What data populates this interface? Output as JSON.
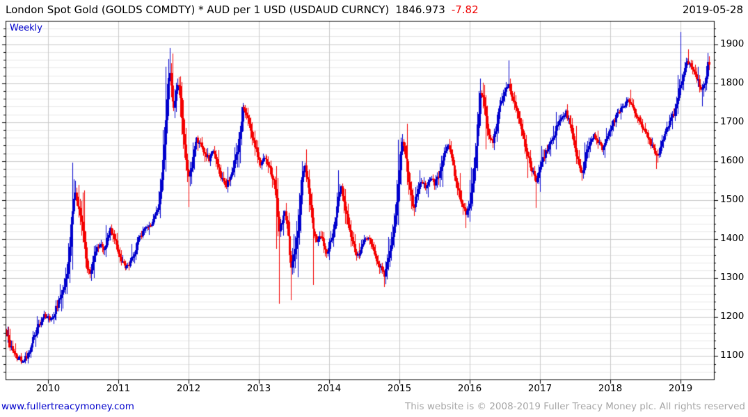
{
  "header": {
    "title": "London Spot Gold (GOLDS COMDTY) * AUD per 1 USD (USDAUD CURNCY)",
    "last_price": "1846.973",
    "change": "-7.82",
    "date": "2019-05-28"
  },
  "footer": {
    "website": "www.fullertreacymoney.com",
    "copyright": "This website is © 2008-2019 Fuller Treacy Money plc. All rights reserved"
  },
  "chart_data": {
    "type": "candlestick",
    "frequency_label": "Weekly",
    "title": "London Spot Gold (GOLDS COMDTY) * AUD per 1 USD (USDAUD CURNCY)",
    "last_close": 1846.973,
    "last_change": -7.82,
    "x_ticks": [
      2010,
      2011,
      2012,
      2013,
      2014,
      2015,
      2016,
      2017,
      2018,
      2019
    ],
    "y_ticks": [
      1100,
      1200,
      1300,
      1400,
      1500,
      1600,
      1700,
      1800,
      1900
    ],
    "y_minor_step": 20,
    "x_range": [
      2009.402,
      2019.475
    ],
    "y_range": [
      1040,
      1960
    ],
    "grid": true,
    "y_axis_side": "right",
    "colors": {
      "up": "#0000cc",
      "down": "#f40000",
      "grid_major": "#c9c9c9",
      "grid_minor": "#e7e7e7",
      "border": "#000000"
    },
    "anchors": [
      [
        2009.4,
        1163
      ],
      [
        2009.44,
        1140
      ],
      [
        2009.48,
        1118
      ],
      [
        2009.54,
        1100
      ],
      [
        2009.6,
        1090
      ],
      [
        2009.65,
        1086
      ],
      [
        2009.7,
        1105
      ],
      [
        2009.76,
        1130
      ],
      [
        2009.82,
        1158
      ],
      [
        2009.88,
        1185
      ],
      [
        2009.94,
        1205
      ],
      [
        2010.0,
        1200
      ],
      [
        2010.06,
        1192
      ],
      [
        2010.12,
        1225
      ],
      [
        2010.18,
        1255
      ],
      [
        2010.24,
        1285
      ],
      [
        2010.29,
        1340
      ],
      [
        2010.33,
        1455
      ],
      [
        2010.37,
        1520
      ],
      [
        2010.41,
        1500
      ],
      [
        2010.45,
        1470
      ],
      [
        2010.5,
        1415
      ],
      [
        2010.55,
        1330
      ],
      [
        2010.59,
        1308
      ],
      [
        2010.64,
        1350
      ],
      [
        2010.69,
        1383
      ],
      [
        2010.74,
        1390
      ],
      [
        2010.79,
        1365
      ],
      [
        2010.84,
        1400
      ],
      [
        2010.89,
        1425
      ],
      [
        2010.94,
        1400
      ],
      [
        2010.99,
        1375
      ],
      [
        2011.04,
        1350
      ],
      [
        2011.1,
        1330
      ],
      [
        2011.16,
        1335
      ],
      [
        2011.22,
        1360
      ],
      [
        2011.29,
        1400
      ],
      [
        2011.36,
        1420
      ],
      [
        2011.43,
        1435
      ],
      [
        2011.5,
        1450
      ],
      [
        2011.56,
        1470
      ],
      [
        2011.61,
        1540
      ],
      [
        2011.65,
        1640
      ],
      [
        2011.69,
        1755
      ],
      [
        2011.72,
        1835
      ],
      [
        2011.75,
        1795
      ],
      [
        2011.78,
        1730
      ],
      [
        2011.81,
        1760
      ],
      [
        2011.84,
        1795
      ],
      [
        2011.87,
        1790
      ],
      [
        2011.9,
        1715
      ],
      [
        2011.93,
        1660
      ],
      [
        2011.96,
        1600
      ],
      [
        2011.99,
        1550
      ],
      [
        2012.03,
        1580
      ],
      [
        2012.08,
        1640
      ],
      [
        2012.11,
        1660
      ],
      [
        2012.16,
        1645
      ],
      [
        2012.22,
        1625
      ],
      [
        2012.28,
        1605
      ],
      [
        2012.34,
        1625
      ],
      [
        2012.39,
        1605
      ],
      [
        2012.44,
        1575
      ],
      [
        2012.49,
        1548
      ],
      [
        2012.53,
        1532
      ],
      [
        2012.58,
        1560
      ],
      [
        2012.63,
        1585
      ],
      [
        2012.68,
        1615
      ],
      [
        2012.73,
        1680
      ],
      [
        2012.77,
        1735
      ],
      [
        2012.82,
        1725
      ],
      [
        2012.87,
        1690
      ],
      [
        2012.92,
        1655
      ],
      [
        2012.97,
        1620
      ],
      [
        2013.02,
        1595
      ],
      [
        2013.07,
        1618
      ],
      [
        2013.12,
        1600
      ],
      [
        2013.18,
        1565
      ],
      [
        2013.24,
        1525
      ],
      [
        2013.28,
        1420
      ],
      [
        2013.32,
        1445
      ],
      [
        2013.37,
        1468
      ],
      [
        2013.42,
        1415
      ],
      [
        2013.46,
        1320
      ],
      [
        2013.51,
        1365
      ],
      [
        2013.56,
        1430
      ],
      [
        2013.61,
        1555
      ],
      [
        2013.65,
        1585
      ],
      [
        2013.69,
        1550
      ],
      [
        2013.73,
        1480
      ],
      [
        2013.77,
        1425
      ],
      [
        2013.82,
        1395
      ],
      [
        2013.87,
        1415
      ],
      [
        2013.92,
        1385
      ],
      [
        2013.97,
        1365
      ],
      [
        2014.02,
        1400
      ],
      [
        2014.08,
        1445
      ],
      [
        2014.13,
        1505
      ],
      [
        2014.17,
        1538
      ],
      [
        2014.22,
        1490
      ],
      [
        2014.27,
        1435
      ],
      [
        2014.33,
        1395
      ],
      [
        2014.39,
        1355
      ],
      [
        2014.44,
        1370
      ],
      [
        2014.5,
        1395
      ],
      [
        2014.56,
        1400
      ],
      [
        2014.62,
        1375
      ],
      [
        2014.68,
        1345
      ],
      [
        2014.74,
        1320
      ],
      [
        2014.79,
        1310
      ],
      [
        2014.84,
        1345
      ],
      [
        2014.89,
        1390
      ],
      [
        2014.94,
        1455
      ],
      [
        2014.99,
        1555
      ],
      [
        2015.03,
        1645
      ],
      [
        2015.08,
        1622
      ],
      [
        2015.14,
        1545
      ],
      [
        2015.2,
        1480
      ],
      [
        2015.26,
        1525
      ],
      [
        2015.32,
        1552
      ],
      [
        2015.38,
        1532
      ],
      [
        2015.44,
        1558
      ],
      [
        2015.5,
        1540
      ],
      [
        2015.56,
        1562
      ],
      [
        2015.62,
        1610
      ],
      [
        2015.68,
        1645
      ],
      [
        2015.73,
        1618
      ],
      [
        2015.78,
        1575
      ],
      [
        2015.84,
        1520
      ],
      [
        2015.9,
        1480
      ],
      [
        2015.95,
        1460
      ],
      [
        2016.0,
        1495
      ],
      [
        2016.05,
        1565
      ],
      [
        2016.11,
        1675
      ],
      [
        2016.16,
        1785
      ],
      [
        2016.21,
        1740
      ],
      [
        2016.26,
        1672
      ],
      [
        2016.32,
        1645
      ],
      [
        2016.38,
        1698
      ],
      [
        2016.44,
        1755
      ],
      [
        2016.5,
        1780
      ],
      [
        2016.55,
        1798
      ],
      [
        2016.6,
        1770
      ],
      [
        2016.65,
        1738
      ],
      [
        2016.71,
        1700
      ],
      [
        2016.77,
        1658
      ],
      [
        2016.83,
        1615
      ],
      [
        2016.89,
        1572
      ],
      [
        2016.95,
        1548
      ],
      [
        2017.0,
        1582
      ],
      [
        2017.06,
        1618
      ],
      [
        2017.12,
        1638
      ],
      [
        2017.18,
        1658
      ],
      [
        2017.24,
        1688
      ],
      [
        2017.3,
        1712
      ],
      [
        2017.36,
        1728
      ],
      [
        2017.42,
        1700
      ],
      [
        2017.48,
        1655
      ],
      [
        2017.54,
        1598
      ],
      [
        2017.59,
        1565
      ],
      [
        2017.65,
        1615
      ],
      [
        2017.71,
        1655
      ],
      [
        2017.77,
        1668
      ],
      [
        2017.83,
        1650
      ],
      [
        2017.89,
        1628
      ],
      [
        2017.95,
        1658
      ],
      [
        2018.01,
        1688
      ],
      [
        2018.07,
        1712
      ],
      [
        2018.13,
        1730
      ],
      [
        2018.19,
        1745
      ],
      [
        2018.25,
        1758
      ],
      [
        2018.31,
        1738
      ],
      [
        2018.37,
        1718
      ],
      [
        2018.43,
        1698
      ],
      [
        2018.49,
        1678
      ],
      [
        2018.55,
        1658
      ],
      [
        2018.61,
        1630
      ],
      [
        2018.66,
        1608
      ],
      [
        2018.72,
        1640
      ],
      [
        2018.78,
        1678
      ],
      [
        2018.84,
        1700
      ],
      [
        2018.9,
        1722
      ],
      [
        2018.95,
        1755
      ],
      [
        2019.0,
        1800
      ],
      [
        2019.05,
        1835
      ],
      [
        2019.1,
        1862
      ],
      [
        2019.15,
        1848
      ],
      [
        2019.2,
        1830
      ],
      [
        2019.25,
        1802
      ],
      [
        2019.3,
        1778
      ],
      [
        2019.35,
        1808
      ],
      [
        2019.39,
        1852
      ],
      [
        2019.41,
        1847
      ]
    ],
    "spikes": [
      [
        2010.375,
        1550,
        "high"
      ],
      [
        2011.725,
        1891,
        "high"
      ],
      [
        2011.99,
        1482,
        "low"
      ],
      [
        2013.285,
        1234,
        "low"
      ],
      [
        2013.465,
        1244,
        "low"
      ],
      [
        2013.77,
        1282,
        "low"
      ],
      [
        2014.79,
        1278,
        "low"
      ],
      [
        2015.03,
        1666,
        "high"
      ],
      [
        2015.95,
        1428,
        "low"
      ],
      [
        2016.16,
        1808,
        "high"
      ],
      [
        2016.555,
        1859,
        "high"
      ],
      [
        2016.95,
        1480,
        "low"
      ],
      [
        2017.38,
        1742,
        "high"
      ],
      [
        2018.28,
        1784,
        "high"
      ],
      [
        2018.66,
        1580,
        "low"
      ],
      [
        2019.005,
        1932,
        "high"
      ],
      [
        2019.11,
        1887,
        "high"
      ],
      [
        2019.31,
        1740,
        "low"
      ],
      [
        2019.385,
        1878,
        "high"
      ]
    ]
  }
}
